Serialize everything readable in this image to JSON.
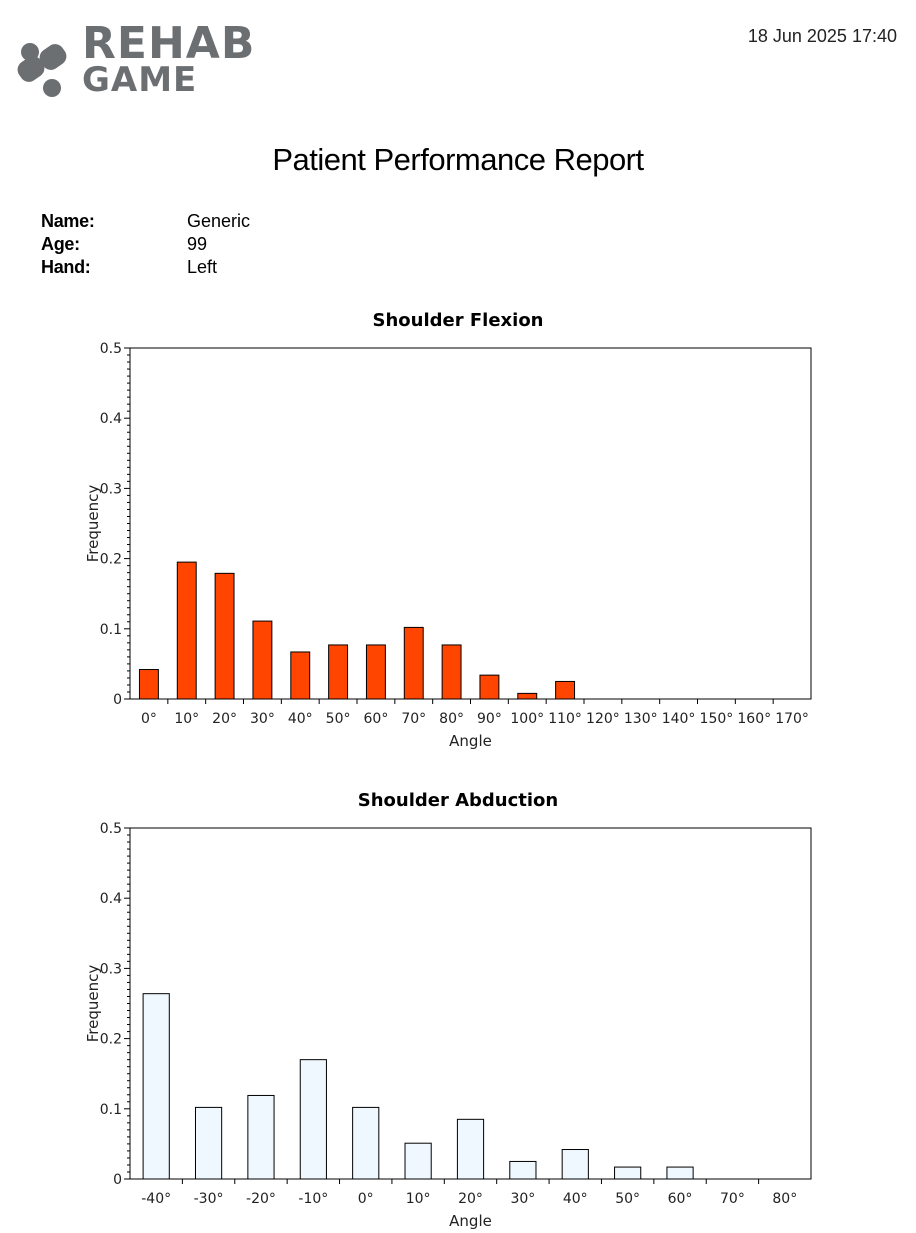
{
  "header": {
    "logo_line1": "REHAB",
    "logo_line2": "GAME",
    "timestamp": "18 Jun 2025  17:40"
  },
  "report": {
    "title": "Patient Performance Report",
    "patient": [
      {
        "label": "Name:",
        "value": "Generic"
      },
      {
        "label": "Age:",
        "value": "99"
      },
      {
        "label": "Hand:",
        "value": "Left"
      }
    ]
  },
  "colors": {
    "flexion_bar": "#ff4500",
    "abduction_bar": "#f0f8ff",
    "bar_stroke": "#000000",
    "logo": "#6c6f72"
  },
  "chart_data": [
    {
      "type": "bar",
      "title": "Shoulder Flexion",
      "xlabel": "Angle",
      "ylabel": "Frequency",
      "ylim": [
        0,
        0.5
      ],
      "yticks": [
        "0",
        "0.1",
        "0.2",
        "0.3",
        "0.4",
        "0.5"
      ],
      "categories": [
        "0°",
        "10°",
        "20°",
        "30°",
        "40°",
        "50°",
        "60°",
        "70°",
        "80°",
        "90°",
        "100°",
        "110°",
        "120°",
        "130°",
        "140°",
        "150°",
        "160°",
        "170°"
      ],
      "values": [
        0.042,
        0.195,
        0.179,
        0.111,
        0.067,
        0.077,
        0.077,
        0.102,
        0.077,
        0.034,
        0.008,
        0.025,
        0,
        0,
        0,
        0,
        0,
        0
      ],
      "grid": false,
      "legend": "none"
    },
    {
      "type": "bar",
      "title": "Shoulder Abduction",
      "xlabel": "Angle",
      "ylabel": "Frequency",
      "ylim": [
        0,
        0.5
      ],
      "yticks": [
        "0",
        "0.1",
        "0.2",
        "0.3",
        "0.4",
        "0.5"
      ],
      "categories": [
        "-40°",
        "-30°",
        "-20°",
        "-10°",
        "0°",
        "10°",
        "20°",
        "30°",
        "40°",
        "50°",
        "60°",
        "70°",
        "80°"
      ],
      "values": [
        0.264,
        0.102,
        0.119,
        0.17,
        0.102,
        0.051,
        0.085,
        0.025,
        0.042,
        0.017,
        0.017,
        0,
        0
      ],
      "grid": false,
      "legend": "none"
    }
  ]
}
